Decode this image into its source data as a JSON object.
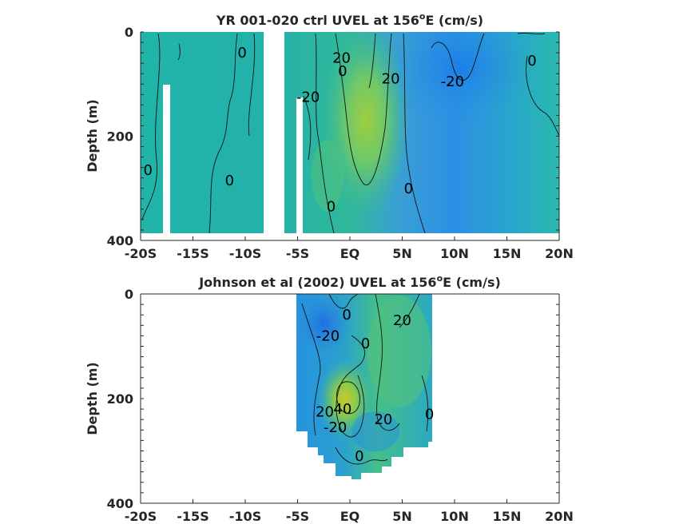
{
  "chart_data": [
    {
      "type": "heatmap",
      "title": "YR 001-020 ctrl UVEL at 156",
      "title_sup": "o",
      "title_tail": "E (cm/s)",
      "ylabel": "Depth (m)",
      "xlim": [
        -20,
        20
      ],
      "ylim": [
        400,
        0
      ],
      "x_ticks": [
        "-20S",
        "-15S",
        "-10S",
        "-5S",
        "EQ",
        "5N",
        "10N",
        "15N",
        "20N"
      ],
      "y_ticks": [
        "0",
        "200",
        "400"
      ],
      "contour_labels": [
        {
          "text": "0",
          "lat": -10.3,
          "depth": 40
        },
        {
          "text": "20",
          "lat": -0.8,
          "depth": 50
        },
        {
          "text": "0",
          "lat": -0.7,
          "depth": 75
        },
        {
          "text": "20",
          "lat": 3.9,
          "depth": 90
        },
        {
          "text": "-20",
          "lat": 9.8,
          "depth": 95
        },
        {
          "text": "0",
          "lat": 17.4,
          "depth": 55
        },
        {
          "text": "-20",
          "lat": -4.0,
          "depth": 125
        },
        {
          "text": "0",
          "lat": -19.3,
          "depth": 265
        },
        {
          "text": "0",
          "lat": -11.5,
          "depth": 285
        },
        {
          "text": "0",
          "lat": -1.8,
          "depth": 335
        },
        {
          "text": "0",
          "lat": 5.6,
          "depth": 300
        }
      ]
    },
    {
      "type": "heatmap",
      "title": "Johnson et al (2002) UVEL at 156",
      "title_sup": "o",
      "title_tail": "E (cm/s)",
      "ylabel": "Depth (m)",
      "xlim": [
        -20,
        20
      ],
      "ylim": [
        400,
        0
      ],
      "data_lat_range": [
        -5,
        8
      ],
      "x_ticks": [
        "-20S",
        "-15S",
        "-10S",
        "-5S",
        "EQ",
        "5N",
        "10N",
        "15N",
        "20N"
      ],
      "y_ticks": [
        "0",
        "200",
        "400"
      ],
      "contour_labels": [
        {
          "text": "0",
          "lat": -0.3,
          "depth": 40
        },
        {
          "text": "-20",
          "lat": -2.1,
          "depth": 80
        },
        {
          "text": "0",
          "lat": 1.5,
          "depth": 95
        },
        {
          "text": "20",
          "lat": 5.0,
          "depth": 50
        },
        {
          "text": "20",
          "lat": -2.4,
          "depth": 225
        },
        {
          "text": "40",
          "lat": -0.7,
          "depth": 220
        },
        {
          "text": "-20",
          "lat": -1.4,
          "depth": 255
        },
        {
          "text": "20",
          "lat": 3.2,
          "depth": 240
        },
        {
          "text": "0",
          "lat": 7.6,
          "depth": 230
        },
        {
          "text": "0",
          "lat": 0.9,
          "depth": 310
        }
      ]
    }
  ]
}
